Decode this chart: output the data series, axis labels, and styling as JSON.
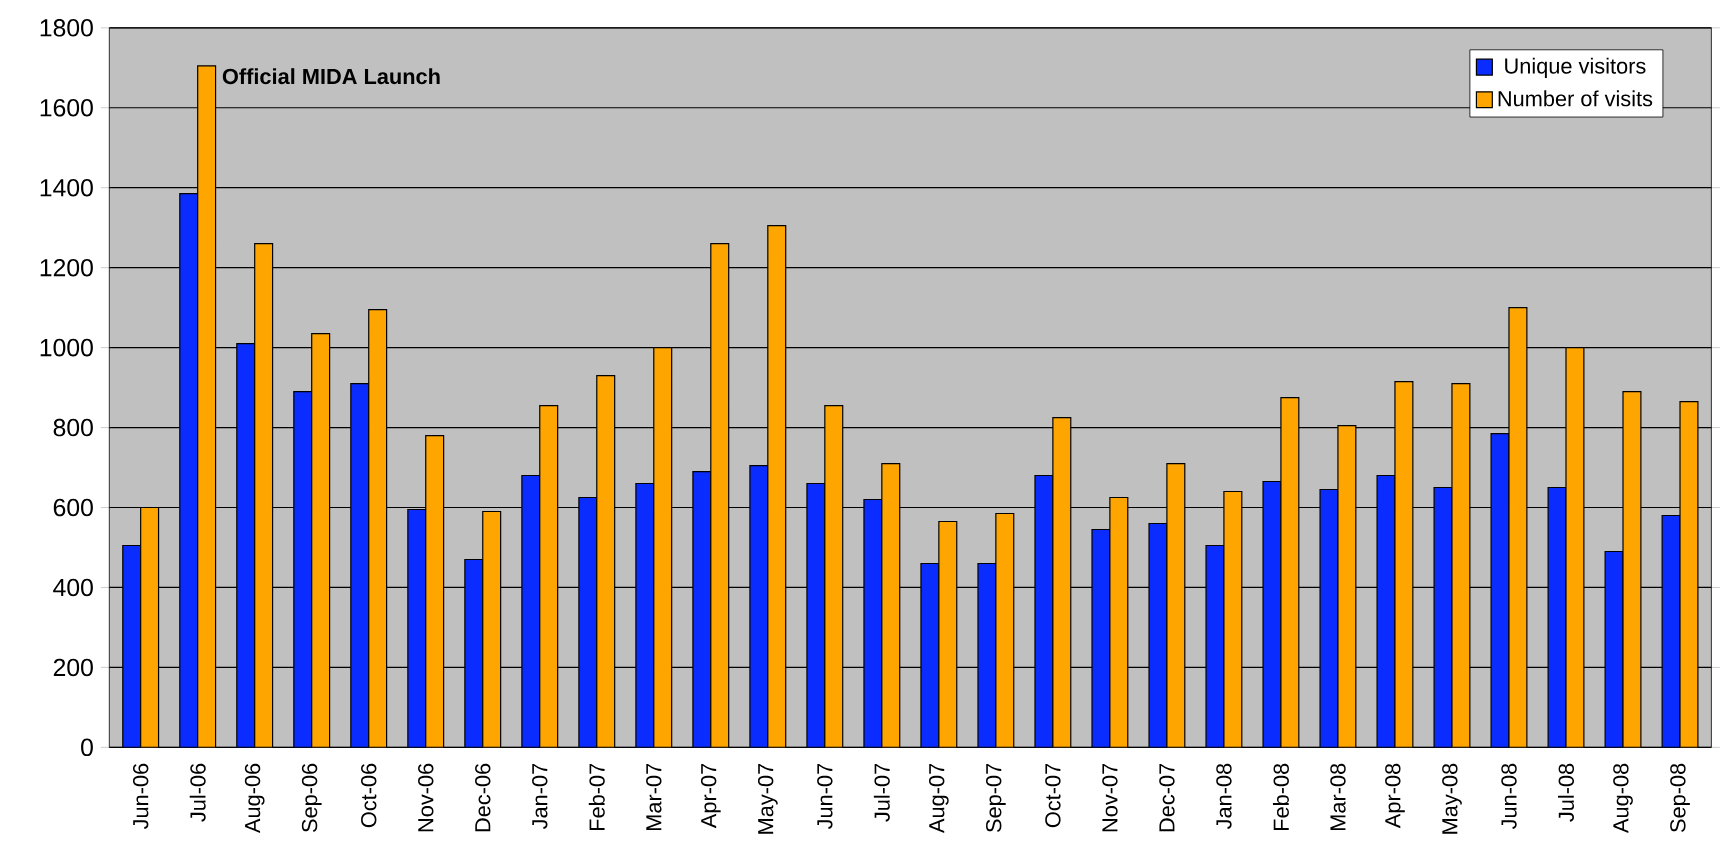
{
  "chart_data": {
    "type": "bar",
    "categories": [
      "Jun-06",
      "Jul-06",
      "Aug-06",
      "Sep-06",
      "Oct-06",
      "Nov-06",
      "Dec-06",
      "Jan-07",
      "Feb-07",
      "Mar-07",
      "Apr-07",
      "May-07",
      "Jun-07",
      "Jul-07",
      "Aug-07",
      "Sep-07",
      "Oct-07",
      "Nov-07",
      "Dec-07",
      "Jan-08",
      "Feb-08",
      "Mar-08",
      "Apr-08",
      "May-08",
      "Jun-08",
      "Jul-08",
      "Aug-08",
      "Sep-08"
    ],
    "series": [
      {
        "name": "Unique visitors",
        "color": "#0a2cff",
        "values": [
          505,
          1385,
          1010,
          890,
          910,
          595,
          470,
          680,
          625,
          660,
          690,
          705,
          660,
          620,
          460,
          460,
          680,
          545,
          560,
          505,
          665,
          645,
          680,
          650,
          785,
          650,
          490,
          580
        ]
      },
      {
        "name": "Number of visits",
        "color": "#ffa500",
        "values": [
          600,
          1705,
          1260,
          1035,
          1095,
          780,
          590,
          855,
          930,
          1000,
          1260,
          1305,
          855,
          710,
          565,
          585,
          825,
          625,
          710,
          640,
          875,
          805,
          915,
          910,
          1100,
          1000,
          890,
          865
        ]
      }
    ],
    "ylim": [
      0,
      1800
    ],
    "yticks": [
      0,
      200,
      400,
      600,
      800,
      1000,
      1200,
      1400,
      1600,
      1800
    ],
    "grid": "y",
    "legend": "top right",
    "annotations": [
      {
        "text": "Official MIDA Launch",
        "x": "Jul-06",
        "y": 1705
      }
    ]
  }
}
